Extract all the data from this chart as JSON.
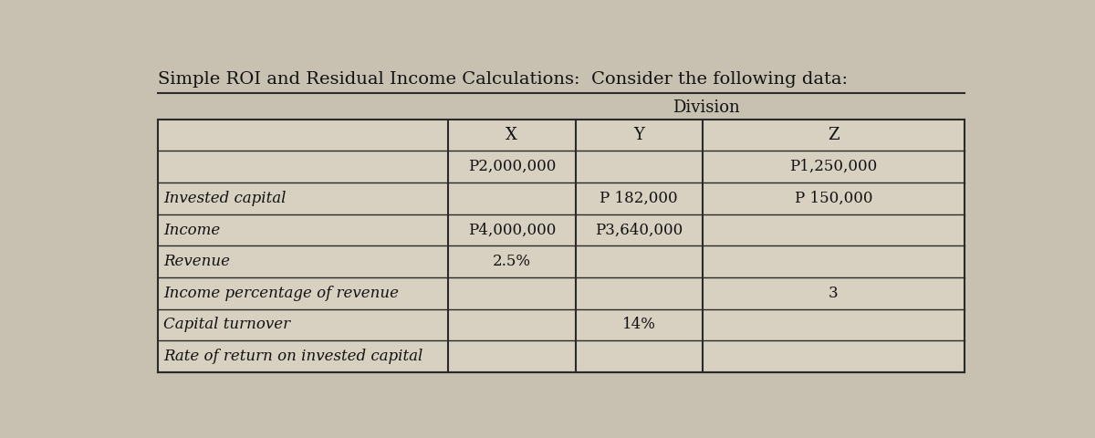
{
  "title": "Simple ROI and Residual Income Calculations:  Consider the following data:",
  "division_label": "Division",
  "bg_color": "#c8c0b0",
  "table_bg": "#d8d0c0",
  "border_color": "#2a2a2a",
  "text_color": "#111111",
  "title_fontsize": 14,
  "header_fontsize": 13,
  "cell_fontsize": 12,
  "label_fontsize": 12,
  "rows": [
    {
      "label": "",
      "x": "P2,000,000",
      "y": "",
      "z": "P1,250,000"
    },
    {
      "label": "Invested capital",
      "x": "",
      "y": "P 182,000",
      "z": "P 150,000"
    },
    {
      "label": "Income",
      "x": "P4,000,000",
      "y": "P3,640,000",
      "z": ""
    },
    {
      "label": "Revenue",
      "x": "2.5%",
      "y": "",
      "z": ""
    },
    {
      "label": "Income percentage of revenue",
      "x": "",
      "y": "",
      "z": "3"
    },
    {
      "label": "Capital turnover",
      "x": "",
      "y": "14%",
      "z": ""
    },
    {
      "label": "Rate of return on invested capital",
      "x": "",
      "y": "",
      "z": ""
    }
  ]
}
